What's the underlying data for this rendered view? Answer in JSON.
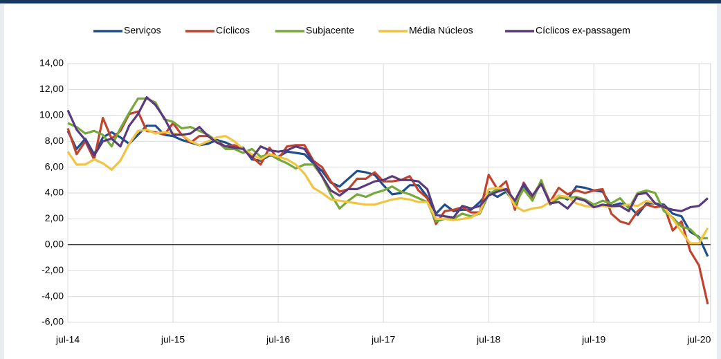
{
  "chart_data": {
    "type": "line",
    "categories": [
      "jul-14",
      null,
      null,
      null,
      null,
      null,
      null,
      null,
      null,
      null,
      null,
      null,
      "jul-15",
      null,
      null,
      null,
      null,
      null,
      null,
      null,
      null,
      null,
      null,
      null,
      "jul-16",
      null,
      null,
      null,
      null,
      null,
      null,
      null,
      null,
      null,
      null,
      null,
      "jul-17",
      null,
      null,
      null,
      null,
      null,
      null,
      null,
      null,
      null,
      null,
      null,
      "jul-18",
      null,
      null,
      null,
      null,
      null,
      null,
      null,
      null,
      null,
      null,
      null,
      "jul-19",
      null,
      null,
      null,
      null,
      null,
      null,
      null,
      null,
      null,
      null,
      null,
      "jul-20",
      null
    ],
    "series": [
      {
        "name": "Serviços",
        "color": "#1f4e8c",
        "values": [
          8.8,
          7.4,
          8.2,
          7.0,
          8.3,
          8.7,
          8.3,
          7.8,
          8.5,
          9.2,
          9.2,
          8.5,
          8.4,
          8.1,
          7.9,
          7.7,
          7.8,
          8.1,
          7.9,
          7.6,
          7.5,
          6.6,
          6.5,
          6.9,
          6.8,
          7.2,
          7.1,
          7.0,
          6.3,
          5.7,
          4.8,
          4.5,
          5.1,
          5.7,
          5.6,
          5.4,
          4.6,
          3.9,
          4.0,
          4.6,
          4.6,
          3.7,
          2.4,
          3.1,
          2.6,
          2.7,
          2.7,
          3.3,
          4.1,
          3.7,
          4.1,
          3.2,
          4.6,
          3.6,
          4.8,
          3.3,
          3.8,
          3.5,
          4.5,
          4.4,
          4.2,
          4.1,
          3.0,
          3.2,
          3.0,
          2.3,
          3.2,
          3.2,
          3.1,
          2.4,
          2.2,
          1.0,
          0.6,
          -0.9
        ]
      },
      {
        "name": "Cíclicos",
        "color": "#c0432e",
        "values": [
          9.0,
          7.0,
          8.0,
          6.6,
          9.8,
          8.2,
          8.8,
          10.1,
          10.3,
          8.8,
          8.7,
          8.5,
          9.4,
          8.5,
          7.9,
          8.4,
          8.4,
          8.0,
          7.6,
          7.7,
          7.4,
          6.8,
          6.2,
          7.5,
          6.6,
          7.6,
          7.7,
          7.7,
          6.5,
          6.0,
          4.9,
          4.1,
          4.3,
          5.1,
          5.1,
          5.6,
          4.9,
          4.9,
          5.0,
          5.3,
          4.2,
          3.6,
          1.6,
          2.6,
          2.7,
          2.9,
          2.5,
          2.5,
          5.4,
          4.3,
          4.9,
          2.7,
          4.8,
          3.7,
          4.9,
          3.3,
          4.4,
          3.9,
          4.2,
          4.0,
          4.2,
          4.3,
          2.4,
          1.8,
          1.6,
          2.6,
          3.1,
          2.9,
          3.0,
          1.1,
          1.8,
          -0.5,
          -1.6,
          -4.6
        ]
      },
      {
        "name": "Subjacente",
        "color": "#76a83a",
        "values": [
          9.4,
          9.1,
          8.6,
          8.8,
          8.5,
          7.6,
          9.0,
          10.2,
          11.3,
          11.3,
          11.0,
          9.7,
          9.5,
          9.0,
          9.1,
          8.8,
          8.5,
          8.0,
          7.4,
          7.4,
          7.1,
          7.4,
          6.8,
          7.0,
          6.6,
          6.3,
          5.9,
          6.2,
          6.2,
          5.3,
          3.9,
          2.8,
          3.4,
          3.9,
          3.7,
          4.0,
          4.2,
          4.5,
          4.1,
          3.9,
          3.6,
          3.3,
          1.8,
          2.0,
          2.0,
          2.4,
          2.2,
          2.4,
          3.9,
          4.3,
          4.2,
          3.1,
          4.3,
          3.4,
          5.0,
          3.1,
          3.6,
          3.6,
          3.7,
          3.5,
          3.1,
          3.4,
          3.2,
          3.6,
          2.8,
          4.0,
          4.2,
          4.0,
          2.6,
          2.1,
          1.4,
          1.2,
          0.5,
          0.5
        ]
      },
      {
        "name": "Média Núcleos",
        "color": "#f2c443",
        "values": [
          7.2,
          6.2,
          6.2,
          6.6,
          6.3,
          5.8,
          6.5,
          7.8,
          8.8,
          8.9,
          8.6,
          8.7,
          8.6,
          8.5,
          8.0,
          7.7,
          8.0,
          8.3,
          8.4,
          8.0,
          7.4,
          7.0,
          6.6,
          7.0,
          6.8,
          6.6,
          6.2,
          5.5,
          4.4,
          4.0,
          3.5,
          3.4,
          3.3,
          3.2,
          3.1,
          3.1,
          3.3,
          3.5,
          3.6,
          3.5,
          3.3,
          3.3,
          2.0,
          2.0,
          1.9,
          2.0,
          2.1,
          2.5,
          4.3,
          4.4,
          4.3,
          3.0,
          2.6,
          2.8,
          2.9,
          3.3,
          3.8,
          3.7,
          3.2,
          3.0,
          2.9,
          3.0,
          2.9,
          3.0,
          3.1,
          3.0,
          3.4,
          3.2,
          2.9,
          2.0,
          1.0,
          0.1,
          0.1,
          1.3
        ]
      },
      {
        "name": "Cíclicos ex-passagem",
        "color": "#5a3a7e",
        "values": [
          10.4,
          8.9,
          8.1,
          6.9,
          8.0,
          8.2,
          7.6,
          9.2,
          10.1,
          11.4,
          10.8,
          9.8,
          8.5,
          8.5,
          8.6,
          9.1,
          8.4,
          7.9,
          7.6,
          7.5,
          7.4,
          6.7,
          7.6,
          7.3,
          7.2,
          7.3,
          7.6,
          7.4,
          6.4,
          5.3,
          4.2,
          3.8,
          4.3,
          4.3,
          4.6,
          4.9,
          5.0,
          5.3,
          5.0,
          5.0,
          4.9,
          4.3,
          2.3,
          2.2,
          2.1,
          3.0,
          2.8,
          3.0,
          3.8,
          4.1,
          4.3,
          3.4,
          4.7,
          3.8,
          4.7,
          3.2,
          3.3,
          2.8,
          3.6,
          3.4,
          2.9,
          3.1,
          3.0,
          3.0,
          2.6,
          3.9,
          4.0,
          3.2,
          2.9,
          2.7,
          2.6,
          2.9,
          3.0,
          3.6
        ]
      }
    ],
    "ylim": [
      -6,
      14
    ],
    "yticks": [
      {
        "value": -6,
        "label": "-6,00"
      },
      {
        "value": -4,
        "label": "-4,00"
      },
      {
        "value": -2,
        "label": "-2,00"
      },
      {
        "value": 0,
        "label": "0,00"
      },
      {
        "value": 2,
        "label": "2,00"
      },
      {
        "value": 4,
        "label": "4,00"
      },
      {
        "value": 6,
        "label": "6,00"
      },
      {
        "value": 8,
        "label": "8,00"
      },
      {
        "value": 10,
        "label": "10,00"
      },
      {
        "value": 12,
        "label": "12,00"
      },
      {
        "value": 14,
        "label": "14,00"
      }
    ],
    "grid": true,
    "legend": "top"
  }
}
